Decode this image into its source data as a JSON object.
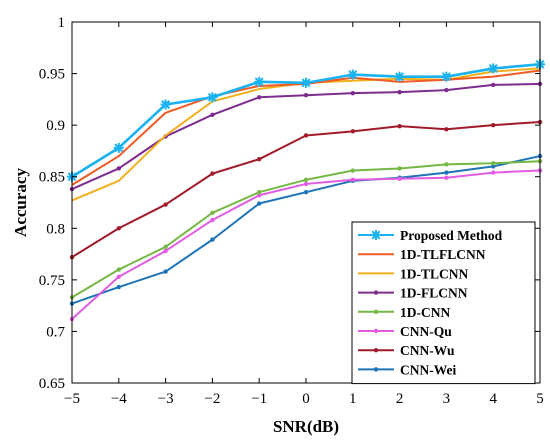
{
  "chart_data": {
    "type": "line",
    "title": "",
    "xlabel": "SNR(dB)",
    "ylabel": "Accuracy",
    "xlim": [
      -5,
      5
    ],
    "ylim": [
      0.65,
      1.0
    ],
    "x": [
      -5,
      -4,
      -3,
      -2,
      -1,
      0,
      1,
      2,
      3,
      4,
      5
    ],
    "xticks": [
      "−5",
      "−4",
      "−3",
      "−2",
      "−1",
      "0",
      "1",
      "2",
      "3",
      "4",
      "5"
    ],
    "yticks": [
      "0.65",
      "0.7",
      "0.75",
      "0.8",
      "0.85",
      "0.9",
      "0.95",
      "1"
    ],
    "ytick_values": [
      0.65,
      0.7,
      0.75,
      0.8,
      0.85,
      0.9,
      0.95,
      1.0
    ],
    "grid": false,
    "legend_position": "bottom-right",
    "series": [
      {
        "name": "Proposed Method",
        "color": "#1ab2f0",
        "marker": "asterisk",
        "values": [
          0.85,
          0.878,
          0.92,
          0.927,
          0.942,
          0.941,
          0.949,
          0.947,
          0.947,
          0.955,
          0.959
        ]
      },
      {
        "name": "1D-TLFLCNN",
        "color": "#f05a23",
        "marker": "none",
        "values": [
          0.842,
          0.87,
          0.912,
          0.928,
          0.938,
          0.94,
          0.946,
          0.942,
          0.944,
          0.947,
          0.953
        ]
      },
      {
        "name": "1D-TLCNN",
        "color": "#f2b01e",
        "marker": "none",
        "values": [
          0.827,
          0.846,
          0.89,
          0.923,
          0.935,
          0.941,
          0.943,
          0.945,
          0.944,
          0.952,
          0.955
        ]
      },
      {
        "name": "1D-FLCNN",
        "color": "#7e2c8e",
        "marker": "dot",
        "values": [
          0.838,
          0.858,
          0.889,
          0.91,
          0.927,
          0.929,
          0.931,
          0.932,
          0.934,
          0.939,
          0.94
        ]
      },
      {
        "name": "1D-CNN",
        "color": "#75b844",
        "marker": "dot",
        "values": [
          0.733,
          0.76,
          0.782,
          0.815,
          0.835,
          0.847,
          0.856,
          0.858,
          0.862,
          0.863,
          0.865
        ]
      },
      {
        "name": "CNN-Qu",
        "color": "#e15ce0",
        "marker": "dot",
        "values": [
          0.712,
          0.753,
          0.778,
          0.808,
          0.832,
          0.843,
          0.847,
          0.848,
          0.849,
          0.854,
          0.856
        ]
      },
      {
        "name": "CNN-Wu",
        "color": "#a21b2b",
        "marker": "dot",
        "values": [
          0.772,
          0.8,
          0.823,
          0.853,
          0.867,
          0.89,
          0.894,
          0.899,
          0.896,
          0.9,
          0.903
        ]
      },
      {
        "name": "CNN-Wei",
        "color": "#1f74b8",
        "marker": "dot",
        "values": [
          0.727,
          0.743,
          0.758,
          0.789,
          0.824,
          0.835,
          0.846,
          0.849,
          0.854,
          0.86,
          0.87
        ]
      }
    ]
  }
}
